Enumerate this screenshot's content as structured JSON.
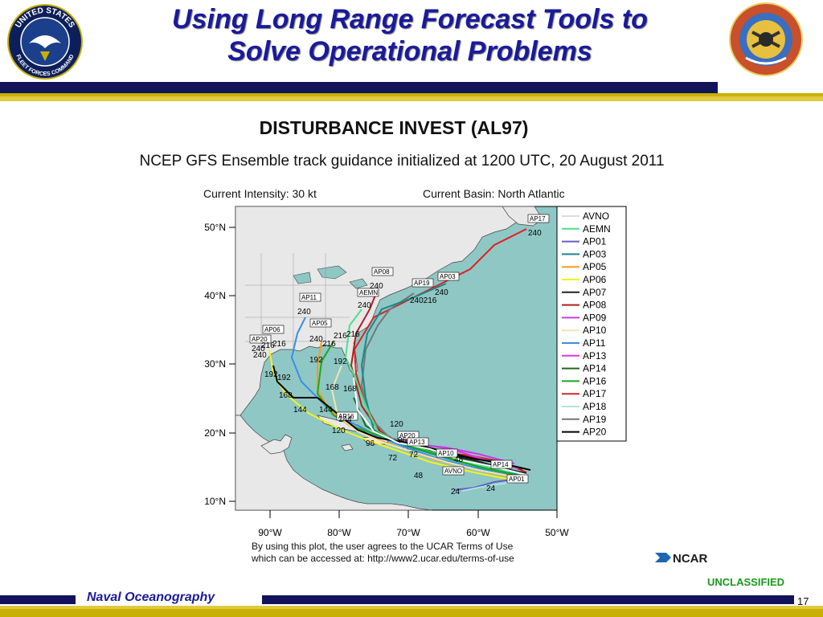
{
  "header": {
    "title_line1": "Using Long Range Forecast Tools to",
    "title_line2": "Solve Operational Problems",
    "left_seal_text_top": "UNITED STATES",
    "left_seal_text_bottom": "FLEET FORCES COMMAND"
  },
  "figure": {
    "heading": "DISTURBANCE INVEST (AL97)",
    "subheading": "NCEP GFS Ensemble track guidance initialized at 1200 UTC, 20 August 2011",
    "current_intensity": "Current Intensity: 30 kt",
    "current_basin": "Current Basin: North Atlantic",
    "terms_line1": "By using this plot, the user agrees to the UCAR Terms of Use",
    "terms_line2": "which can be accessed at: http://www2.ucar.edu/terms-of-use",
    "ncar_logo": "NCAR"
  },
  "map": {
    "lat_labels": [
      "50°N",
      "40°N",
      "30°N",
      "20°N",
      "10°N"
    ],
    "lon_labels": [
      "90°W",
      "80°W",
      "70°W",
      "60°W",
      "50°W"
    ],
    "ocean_color": "#8fc7c5",
    "land_color": "#e8e8e8",
    "legend": [
      {
        "name": "AVNO",
        "color": "#ffffff"
      },
      {
        "name": "AEMN",
        "color": "#4ce08a"
      },
      {
        "name": "AP01",
        "color": "#6a5acd"
      },
      {
        "name": "AP03",
        "color": "#178a8a"
      },
      {
        "name": "AP05",
        "color": "#ff9a1a"
      },
      {
        "name": "AP06",
        "color": "#f4f414"
      },
      {
        "name": "AP07",
        "color": "#222222"
      },
      {
        "name": "AP08",
        "color": "#aa2222"
      },
      {
        "name": "AP09",
        "color": "#c83ce0"
      },
      {
        "name": "AP10",
        "color": "#f0e4b0"
      },
      {
        "name": "AP11",
        "color": "#3a8ee6"
      },
      {
        "name": "AP13",
        "color": "#e830e8"
      },
      {
        "name": "AP14",
        "color": "#1a6a1a"
      },
      {
        "name": "AP16",
        "color": "#1aaa1a"
      },
      {
        "name": "AP17",
        "color": "#dd2222"
      },
      {
        "name": "AP18",
        "color": "#a8e8d8"
      },
      {
        "name": "AP19",
        "color": "#777777"
      },
      {
        "name": "AP20",
        "color": "#000000"
      }
    ],
    "track_tags": [
      "AP17",
      "AP08",
      "AP19",
      "AP03",
      "AEMN",
      "AP11",
      "AP05",
      "AP06",
      "AP20",
      "AP16",
      "AP20",
      "AP13",
      "AP10",
      "AP14",
      "AVNO",
      "AP01"
    ],
    "hour_labels": [
      "240",
      "240",
      "240",
      "240216",
      "240",
      "240",
      "216",
      "240",
      "216",
      "240",
      "240",
      "216",
      "216",
      "216",
      "192",
      "192",
      "192",
      "192",
      "168",
      "168",
      "168",
      "144",
      "144",
      "144",
      "120",
      "120",
      "96",
      "96",
      "72",
      "72",
      "48",
      "48",
      "24",
      "24"
    ]
  },
  "footer": {
    "unclassified": "UNCLASSIFIED",
    "org": "Naval Oceanography",
    "page": "17"
  }
}
